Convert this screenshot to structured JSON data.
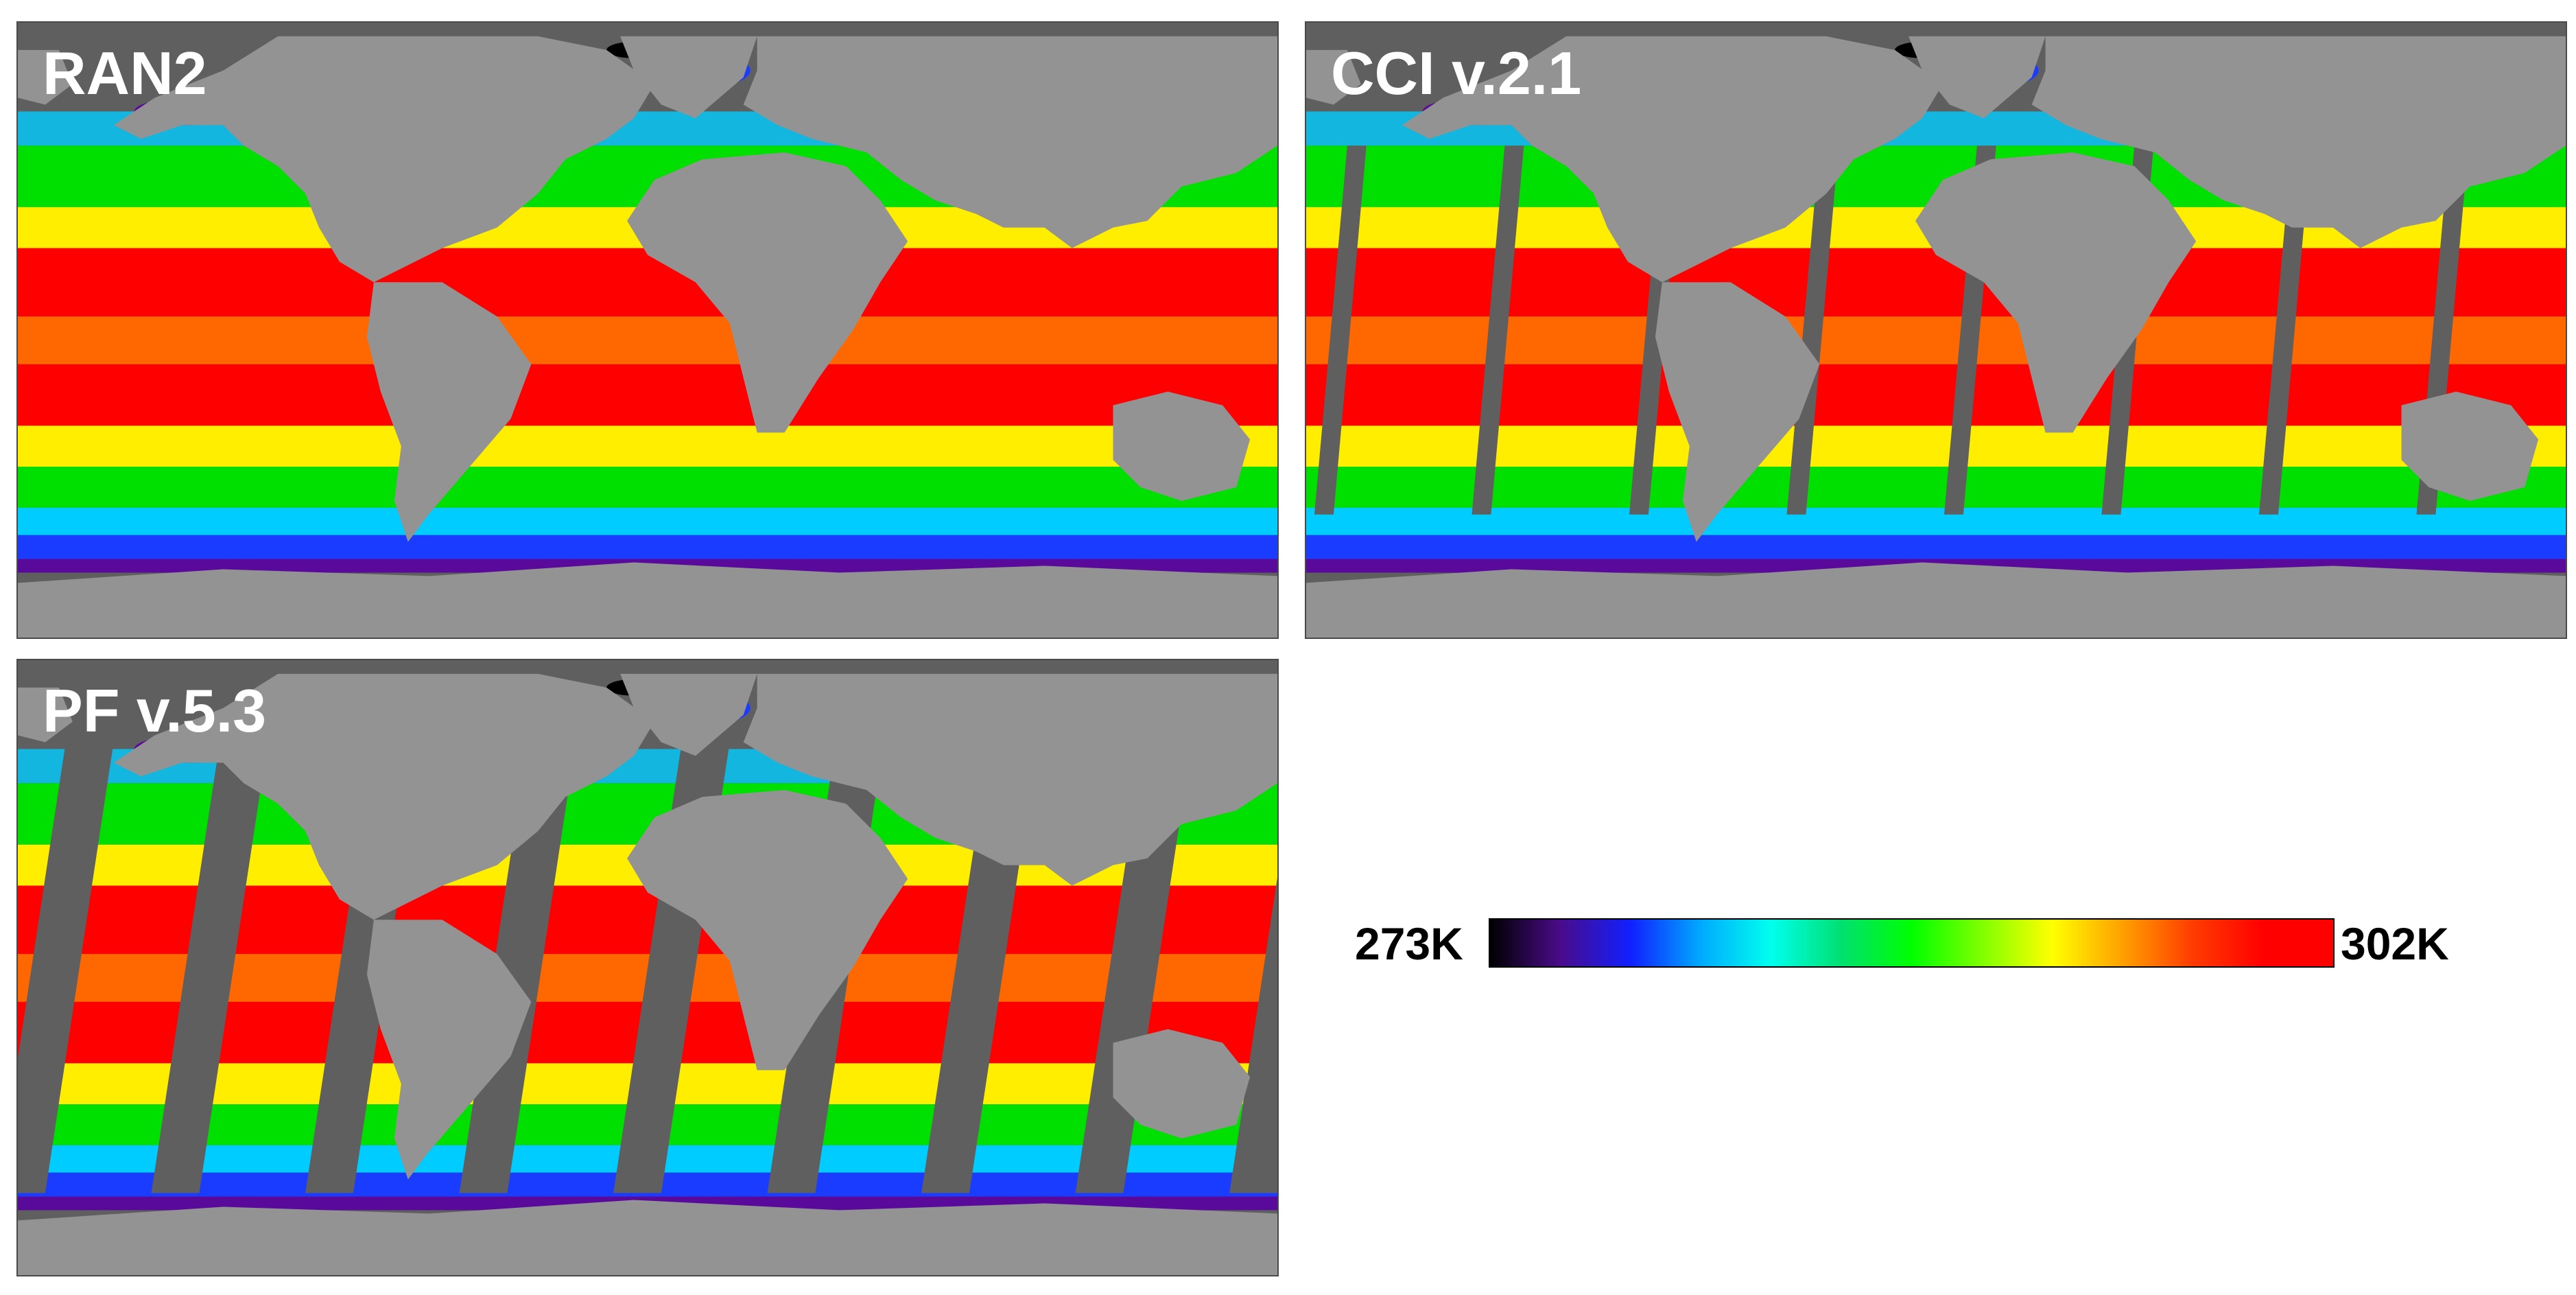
{
  "panels": [
    {
      "label": "RAN2"
    },
    {
      "label": "CCI v.2.1"
    },
    {
      "label": "PF v.5.3"
    }
  ],
  "colorbar": {
    "min_label": "273K",
    "max_label": "302K",
    "stops": [
      "#000000",
      "#4a0b8a",
      "#1020ff",
      "#00aaff",
      "#00ffee",
      "#00e070",
      "#00ff00",
      "#7fff00",
      "#ffff00",
      "#ffa000",
      "#ff3c00",
      "#ff0000",
      "#ff0000"
    ]
  },
  "colors": {
    "ocean_missing": "#5f5f5f",
    "land": "#939393",
    "warm": "#ff0000",
    "orange": "#ff7a00",
    "yellow": "#ffee00",
    "green": "#00e000",
    "cyan": "#00ccff",
    "blue": "#1a3cff",
    "purple": "#5a0a9a",
    "black": "#000000"
  }
}
